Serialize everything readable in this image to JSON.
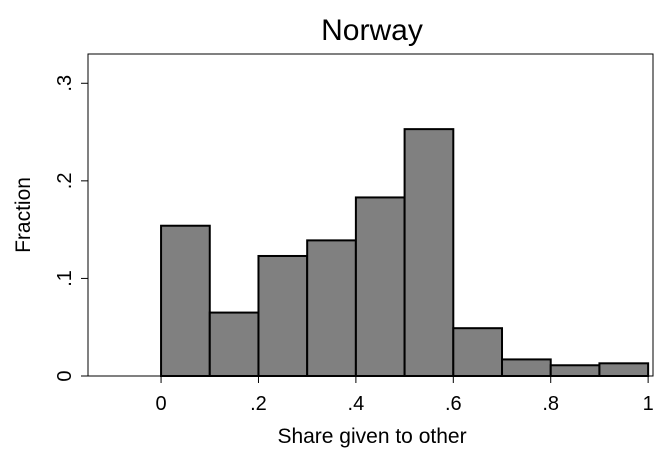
{
  "chart_data": {
    "type": "bar",
    "title": "Norway",
    "xlabel": "Share given to other",
    "ylabel": "Fraction",
    "bin_edges": [
      0,
      0.1,
      0.2,
      0.3,
      0.4,
      0.5,
      0.6,
      0.7,
      0.8,
      0.9,
      1.0
    ],
    "values": [
      0.154,
      0.065,
      0.123,
      0.139,
      0.183,
      0.253,
      0.049,
      0.017,
      0.011,
      0.013
    ],
    "xlim": [
      -0.15,
      1.01
    ],
    "ylim": [
      0,
      0.33
    ],
    "xticks": [
      {
        "value": 0,
        "label": "0"
      },
      {
        "value": 0.2,
        "label": ".2"
      },
      {
        "value": 0.4,
        "label": ".4"
      },
      {
        "value": 0.6,
        "label": ".6"
      },
      {
        "value": 0.8,
        "label": ".8"
      },
      {
        "value": 1,
        "label": "1"
      }
    ],
    "yticks": [
      {
        "value": 0,
        "label": "0"
      },
      {
        "value": 0.1,
        "label": ".1"
      },
      {
        "value": 0.2,
        "label": ".2"
      },
      {
        "value": 0.3,
        "label": ".3"
      }
    ],
    "grid": false,
    "legend": "none",
    "bar_color": "#808080",
    "bar_edge_color": "#000000"
  }
}
